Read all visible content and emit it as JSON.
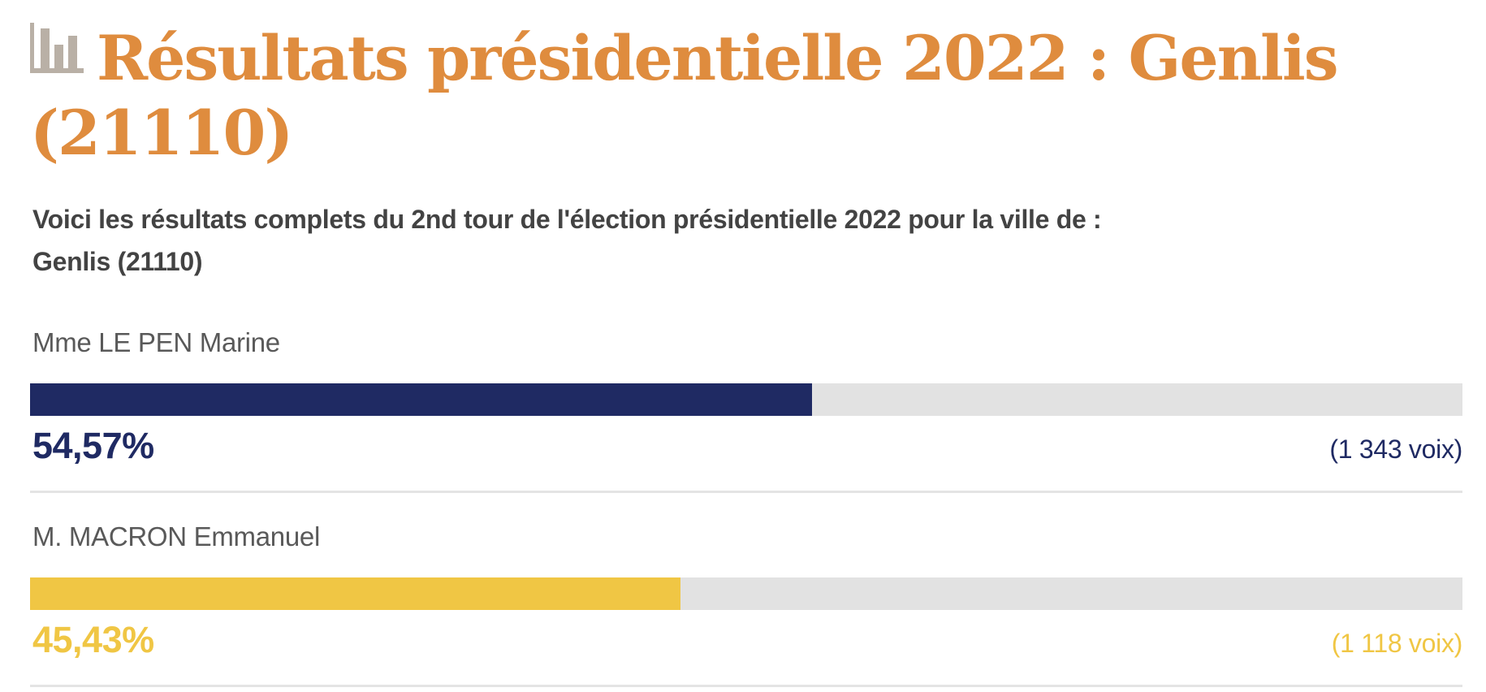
{
  "header": {
    "title_full": "Résultats présidentielle 2022 : Genlis (21110)",
    "title_lines": [
      "Résultats présidentielle 2022 : Genlis",
      "(21110)"
    ],
    "icon": "bar-chart-icon"
  },
  "intro": {
    "text_full": "Voici les résultats complets du 2nd tour de l'élection présidentielle 2022 pour la ville de : Genlis (21110)",
    "lines": [
      "Voici les résultats complets du 2nd tour de l'élection présidentielle 2022 pour la ville de :",
      "Genlis (21110)"
    ]
  },
  "results": [
    {
      "name": "Mme LE PEN Marine",
      "percent_label": "54,57%",
      "percent": 54.57,
      "votes_label": "(1 343 voix)",
      "votes": 1343,
      "color": "#1f2a63"
    },
    {
      "name": "M. MACRON Emmanuel",
      "percent_label": "45,43%",
      "percent": 45.43,
      "votes_label": "(1 118 voix)",
      "votes": 1118,
      "color": "#f0c644"
    }
  ],
  "colors": {
    "title_orange": "#df8c3e",
    "intro_text": "#434343",
    "candidate_name": "#595959",
    "bar_track": "#e2e2e2",
    "divider": "#e4e4e4",
    "icon_gray": "#b9b0a6",
    "lepen_navy": "#1f2a63",
    "macron_yellow": "#f0c644"
  },
  "chart_data": {
    "type": "bar",
    "orientation": "horizontal",
    "title": "Résultats présidentielle 2022 : Genlis (21110)",
    "subtitle": "Voici les résultats complets du 2nd tour de l'élection présidentielle 2022 pour la ville de : Genlis (21110)",
    "categories": [
      "Mme LE PEN Marine",
      "M. MACRON Emmanuel"
    ],
    "series": [
      {
        "name": "pourcentage",
        "values": [
          54.57,
          45.43
        ]
      },
      {
        "name": "voix",
        "values": [
          1343,
          1118
        ]
      }
    ],
    "value_labels": [
      "54,57% (1 343 voix)",
      "45,43% (1 118 voix)"
    ],
    "bar_colors": [
      "#1f2a63",
      "#f0c644"
    ],
    "xlim": [
      0,
      100
    ],
    "unit": "%",
    "grid": false,
    "legend": false
  }
}
